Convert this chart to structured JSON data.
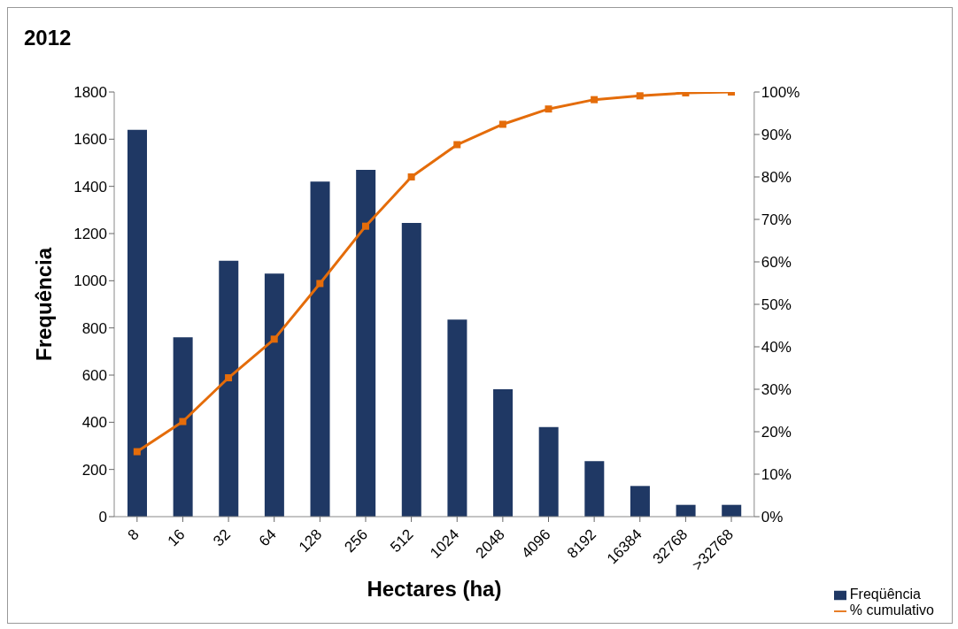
{
  "chart_data": {
    "type": "bar",
    "title": "2012",
    "xlabel": "Hectares (ha)",
    "ylabel": "Frequência",
    "categories": [
      "8",
      "16",
      "32",
      "64",
      "128",
      "256",
      "512",
      "1024",
      "2048",
      "4096",
      "8192",
      "16384",
      "32768",
      ">32768"
    ],
    "series": [
      {
        "name": "Freqüência",
        "color": "#1f3864",
        "values": [
          1640,
          760,
          1085,
          1030,
          1420,
          1470,
          1245,
          835,
          540,
          380,
          235,
          130,
          50,
          50
        ]
      },
      {
        "name": "% cumulativo",
        "type": "line",
        "axis": "y2",
        "color": "#e46c0a",
        "marker": "square",
        "values": [
          15.3,
          22.4,
          32.7,
          41.8,
          54.9,
          68.4,
          80,
          87.6,
          92.4,
          96,
          98.2,
          99.1,
          99.8,
          100
        ]
      }
    ],
    "ylim": [
      0,
      1800
    ],
    "yticks": [
      0,
      200,
      400,
      600,
      800,
      1000,
      1200,
      1400,
      1600,
      1800
    ],
    "y2lim": [
      0,
      100
    ],
    "y2ticks": [
      {
        "value": 0,
        "label": "0%"
      },
      {
        "value": 10,
        "label": "10%"
      },
      {
        "value": 20,
        "label": "20%"
      },
      {
        "value": 30,
        "label": "30%"
      },
      {
        "value": 40,
        "label": "40%"
      },
      {
        "value": 50,
        "label": "50%"
      },
      {
        "value": 60,
        "label": "60%"
      },
      {
        "value": 70,
        "label": "70%"
      },
      {
        "value": 80,
        "label": "80%"
      },
      {
        "value": 90,
        "label": "90%"
      },
      {
        "value": 100,
        "label": "100%"
      }
    ],
    "grid": false,
    "legend": "bottom right"
  }
}
